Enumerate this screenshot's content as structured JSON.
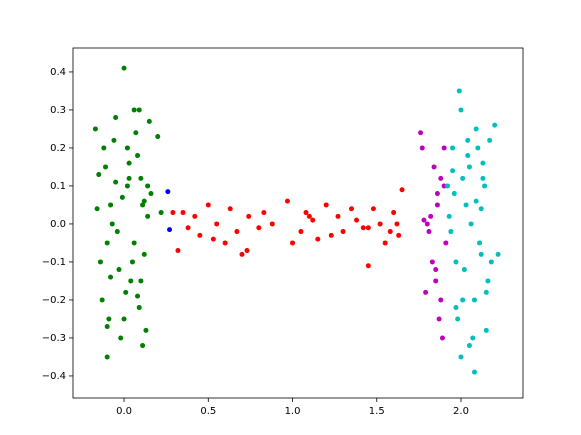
{
  "chart_data": {
    "type": "scatter",
    "xlim": [
      -0.303,
      2.368
    ],
    "ylim": [
      -0.458,
      0.463
    ],
    "xticks": [
      {
        "value": 0,
        "label": "0.0"
      },
      0.5,
      {
        "value": 1,
        "label": "1.0"
      },
      1.5,
      {
        "value": 2,
        "label": "2.0"
      }
    ],
    "yticks": [
      {
        "value": -0.4,
        "label": "−0.4"
      },
      {
        "value": -0.3,
        "label": "−0.3"
      },
      {
        "value": -0.2,
        "label": "−0.2"
      },
      {
        "value": -0.1,
        "label": "−0.1"
      },
      {
        "value": 0,
        "label": "0.0"
      },
      0.1,
      0.2,
      0.3,
      0.4
    ],
    "grid": false,
    "series": [
      {
        "color": "#008000",
        "x": [
          -0.17,
          -0.15,
          -0.12,
          -0.1,
          -0.08,
          -0.05,
          -0.03,
          0.0,
          0.02,
          0.04,
          0.06,
          0.08,
          0.1,
          0.12,
          0.14,
          0.16,
          -0.16,
          -0.13,
          -0.11,
          -0.09,
          -0.06,
          -0.04,
          -0.01,
          0.01,
          0.03,
          0.05,
          0.07,
          0.09,
          0.11,
          0.13,
          0.15,
          -0.14,
          -0.1,
          -0.07,
          -0.02,
          0.02,
          0.06,
          0.1,
          0.14,
          0.0,
          0.03,
          -0.1,
          0.09,
          0.11,
          -0.08,
          0.2,
          0.22,
          0.08,
          0.12,
          -0.05
        ],
        "values": [
          0.25,
          0.13,
          0.2,
          -0.05,
          0.05,
          0.28,
          -0.12,
          0.41,
          0.1,
          -0.15,
          0.3,
          0.18,
          0.12,
          -0.08,
          0.02,
          0.08,
          0.04,
          -0.2,
          0.15,
          -0.25,
          0.22,
          -0.02,
          0.07,
          -0.18,
          0.16,
          -0.1,
          0.24,
          -0.22,
          0.05,
          -0.28,
          0.27,
          -0.1,
          -0.35,
          0.0,
          -0.3,
          0.2,
          -0.05,
          -0.15,
          0.1,
          -0.25,
          0.12,
          -0.27,
          0.3,
          -0.32,
          -0.14,
          0.23,
          0.03,
          -0.19,
          0.06,
          0.11
        ]
      },
      {
        "color": "#ff0000",
        "x": [
          0.29,
          0.32,
          0.35,
          0.38,
          0.42,
          0.45,
          0.5,
          0.55,
          0.6,
          0.63,
          0.67,
          0.7,
          0.74,
          0.8,
          0.83,
          0.88,
          0.97,
          1.0,
          1.05,
          1.08,
          1.12,
          1.15,
          1.2,
          1.23,
          1.27,
          1.3,
          1.35,
          1.38,
          1.42,
          1.45,
          1.48,
          1.52,
          1.55,
          1.58,
          1.6,
          1.63,
          1.65,
          0.53,
          0.73,
          1.1,
          1.45,
          1.62
        ],
        "values": [
          0.03,
          -0.07,
          0.03,
          -0.01,
          0.02,
          -0.03,
          0.05,
          0.0,
          -0.05,
          0.04,
          -0.02,
          -0.08,
          0.02,
          -0.01,
          0.03,
          0.0,
          0.06,
          -0.05,
          -0.02,
          0.03,
          0.01,
          -0.04,
          0.05,
          -0.03,
          0.02,
          -0.02,
          0.04,
          0.01,
          -0.01,
          -0.11,
          0.04,
          0.0,
          -0.05,
          -0.02,
          0.03,
          -0.03,
          0.09,
          -0.04,
          -0.07,
          0.02,
          -0.01,
          0.0
        ]
      },
      {
        "color": "#0000ff",
        "x": [
          0.26,
          0.27
        ],
        "values": [
          0.085,
          -0.015
        ]
      },
      {
        "color": "#bf00bf",
        "x": [
          1.76,
          1.77,
          1.79,
          1.8,
          1.82,
          1.84,
          1.85,
          1.86,
          1.87,
          1.88,
          1.89,
          1.9,
          1.91,
          1.78,
          1.83,
          1.86,
          1.88,
          1.9,
          1.81,
          1.85
        ],
        "values": [
          0.24,
          0.2,
          -0.18,
          0.0,
          0.02,
          0.15,
          -0.12,
          0.05,
          -0.25,
          0.12,
          -0.3,
          0.2,
          -0.05,
          0.01,
          -0.1,
          0.08,
          -0.2,
          0.1,
          -0.02,
          -0.15
        ]
      },
      {
        "color": "#00bfbf",
        "x": [
          1.92,
          1.95,
          1.97,
          1.99,
          2.01,
          2.03,
          2.05,
          2.07,
          2.09,
          2.11,
          2.13,
          2.15,
          2.17,
          1.94,
          1.96,
          1.98,
          2.0,
          2.02,
          2.04,
          2.06,
          2.08,
          2.1,
          2.12,
          2.14,
          2.16,
          2.2,
          1.93,
          1.97,
          2.01,
          2.05,
          2.09,
          2.13,
          2.18,
          2.22,
          2.0,
          2.04,
          2.08,
          2.12,
          1.95,
          2.15
        ],
        "values": [
          0.1,
          0.2,
          -0.1,
          0.35,
          -0.2,
          0.05,
          0.15,
          -0.3,
          0.25,
          -0.05,
          0.12,
          -0.18,
          0.22,
          -0.02,
          0.08,
          -0.25,
          0.3,
          -0.12,
          0.18,
          0.0,
          -0.39,
          0.2,
          -0.08,
          0.1,
          -0.15,
          0.26,
          0.02,
          -0.22,
          0.12,
          -0.32,
          0.06,
          0.16,
          -0.1,
          -0.08,
          -0.35,
          0.22,
          -0.2,
          0.04,
          0.14,
          -0.28
        ]
      }
    ]
  }
}
